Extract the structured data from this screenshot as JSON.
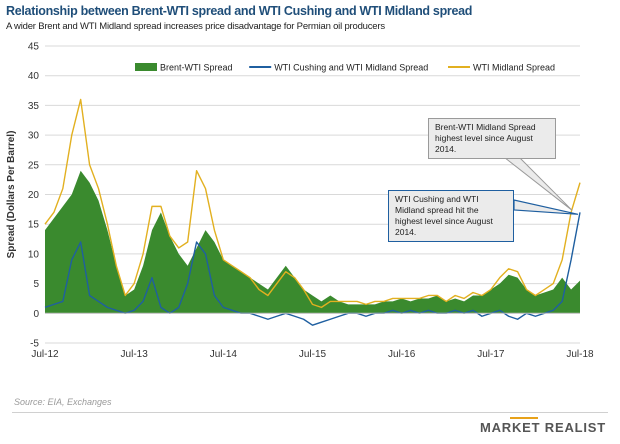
{
  "header": {
    "title": "Relationship between Brent-WTI spread and WTI Cushing and WTI Midland spread",
    "subtitle": "A wider Brent and WTI Midland spread increases price disadvantage for Permian oil producers"
  },
  "footer": {
    "source": "Source: EIA, Exchanges",
    "brand": "MARKET REALIST"
  },
  "colors": {
    "brent_wti": "#3a8a2e",
    "cushing_midland": "#1f5fa0",
    "midland": "#e2b020",
    "grid": "#d9d9d9"
  },
  "chart_data": {
    "type": "area",
    "title": "Relationship between Brent-WTI spread and WTI Cushing and WTI Midland spread",
    "xlabel": "",
    "ylabel": "Spread (Dollars Per Barrel)",
    "ylim": [
      -5,
      45
    ],
    "yticks": [
      -5,
      0,
      5,
      10,
      15,
      20,
      25,
      30,
      35,
      40,
      45
    ],
    "xlim": [
      2012.5,
      2018.5
    ],
    "xticks": [
      {
        "x": 2012.5,
        "label": "Jul-12"
      },
      {
        "x": 2013.5,
        "label": "Jul-13"
      },
      {
        "x": 2014.5,
        "label": "Jul-14"
      },
      {
        "x": 2015.5,
        "label": "Jul-15"
      },
      {
        "x": 2016.5,
        "label": "Jul-16"
      },
      {
        "x": 2017.5,
        "label": "Jul-17"
      },
      {
        "x": 2018.5,
        "label": "Jul-18"
      }
    ],
    "grid": true,
    "legend_position": "top",
    "x": [
      2012.5,
      2012.6,
      2012.7,
      2012.8,
      2012.9,
      2013.0,
      2013.1,
      2013.2,
      2013.3,
      2013.4,
      2013.5,
      2013.6,
      2013.7,
      2013.8,
      2013.9,
      2014.0,
      2014.1,
      2014.2,
      2014.3,
      2014.4,
      2014.5,
      2014.6,
      2014.7,
      2014.8,
      2014.9,
      2015.0,
      2015.1,
      2015.2,
      2015.3,
      2015.4,
      2015.5,
      2015.6,
      2015.7,
      2015.8,
      2015.9,
      2016.0,
      2016.1,
      2016.2,
      2016.3,
      2016.4,
      2016.5,
      2016.6,
      2016.7,
      2016.8,
      2016.9,
      2017.0,
      2017.1,
      2017.2,
      2017.3,
      2017.4,
      2017.5,
      2017.6,
      2017.7,
      2017.8,
      2017.9,
      2018.0,
      2018.1,
      2018.2,
      2018.3,
      2018.4,
      2018.5
    ],
    "series": [
      {
        "name": "Brent-WTI Spread",
        "style": "area",
        "values": [
          14,
          16,
          18,
          20,
          24,
          22,
          19,
          14,
          8,
          3,
          4,
          8,
          14,
          17,
          13,
          10,
          8,
          11,
          14,
          12,
          9,
          8,
          7,
          6,
          5,
          4,
          6,
          8,
          6,
          4,
          3,
          2,
          3,
          2,
          1.5,
          1.5,
          1.5,
          1.5,
          2,
          2,
          2.5,
          2,
          2.5,
          2.5,
          3,
          2,
          2.5,
          2,
          3,
          3,
          4,
          5,
          6.5,
          6,
          4,
          3,
          3.5,
          4,
          6,
          4,
          5.5
        ]
      },
      {
        "name": "WTI Cushing and WTI Midland Spread",
        "style": "line",
        "values": [
          1,
          1.5,
          2,
          9,
          12,
          3,
          2,
          1,
          0.5,
          0,
          0.5,
          2,
          6,
          1,
          0,
          1,
          5,
          12,
          10,
          3,
          1,
          0.5,
          0,
          0,
          -0.5,
          -1,
          -0.5,
          0,
          -0.5,
          -1,
          -2,
          -1.5,
          -1,
          -0.5,
          0,
          0,
          -0.5,
          0,
          0,
          0.5,
          0,
          0.5,
          0,
          0.5,
          0,
          0,
          0.5,
          0,
          0.5,
          -0.5,
          0,
          0.5,
          -0.5,
          -1,
          0,
          -0.5,
          0,
          0.5,
          2,
          9,
          17
        ]
      },
      {
        "name": "WTI Midland Spread",
        "style": "line",
        "values": [
          15,
          17,
          21,
          30,
          36,
          25,
          21,
          15,
          8,
          3,
          5,
          10,
          18,
          18,
          13,
          11,
          12,
          24,
          21,
          14,
          9,
          8,
          7,
          6,
          4,
          3,
          5,
          7,
          6,
          4,
          1.5,
          1,
          2,
          2,
          2,
          2,
          1.5,
          2,
          2,
          2.5,
          2.5,
          2.5,
          2.5,
          3,
          3,
          2,
          3,
          2.5,
          3.5,
          3,
          4,
          6,
          7.5,
          7,
          4,
          3,
          4,
          5,
          9,
          17,
          22
        ]
      }
    ],
    "annotations": [
      {
        "text": "Brent-WTI Midland Spread highest level since August 2014."
      },
      {
        "text": "WTI Cushing and WTI Midland spread hit the highest level since August 2014."
      }
    ]
  }
}
